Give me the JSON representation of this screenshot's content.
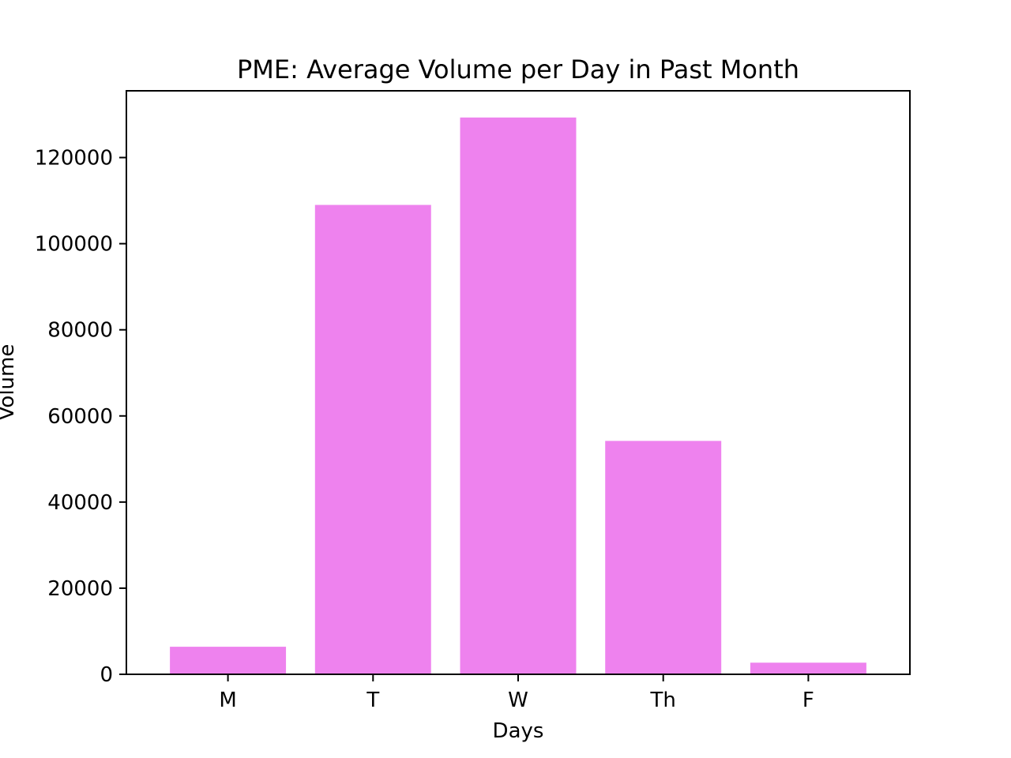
{
  "chart_data": {
    "type": "bar",
    "title": "PME: Average Volume per Day in Past Month",
    "xlabel": "Days",
    "ylabel": "Volume",
    "categories": [
      "M",
      "T",
      "W",
      "Th",
      "F"
    ],
    "values": [
      6400,
      109000,
      129300,
      54200,
      2700
    ],
    "ylim": [
      0,
      135500
    ],
    "yticks": [
      0,
      20000,
      40000,
      60000,
      80000,
      100000,
      120000
    ],
    "ytick_labels": [
      "0",
      "20000",
      "40000",
      "60000",
      "80000",
      "100000",
      "120000"
    ],
    "bar_color": "#ee82ee",
    "grid": false,
    "legend": "none"
  }
}
